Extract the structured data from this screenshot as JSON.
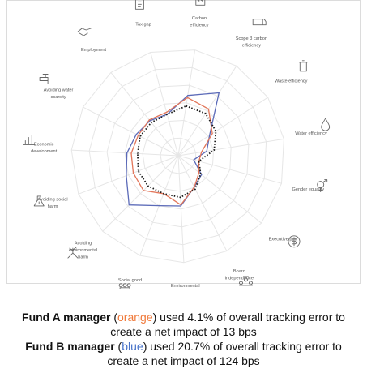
{
  "chart_data": {
    "type": "radar",
    "axes": [
      "Carbon efficiency",
      "Scope 3 carbon efficiency",
      "Waste efficiency",
      "Water efficiency",
      "Gender equality",
      "Executive pay",
      "Board independence",
      "Environmental good",
      "Social good",
      "Avoiding environmental harm",
      "Avoiding social harm",
      "Economic development",
      "Avoiding water scarcity",
      "Employment",
      "Tax gap"
    ],
    "axis_icons": [
      "factory-icon",
      "supply-chain-truck-icon",
      "trash-bin-icon",
      "water-drop-icon",
      "gender-symbol-icon",
      "dollar-coin-icon",
      "board-people-icon",
      "leaf-hand-icon",
      "people-group-icon",
      "hand-plant-icon",
      "warning-flask-icon",
      "bar-chart-icon",
      "water-tap-icon",
      "handshake-icon",
      "tax-document-icon"
    ],
    "rings": 6,
    "max": 1.0,
    "series": [
      {
        "color": "#5b6ab8",
        "values": [
          0.57,
          0.7,
          0.35,
          0.27,
          0.15,
          0.28,
          0.33,
          0.47,
          0.5,
          0.65,
          0.52,
          0.48,
          0.44,
          0.42,
          0.4
        ]
      },
      {
        "color": "#e2765a",
        "values": [
          0.55,
          0.52,
          0.38,
          0.22,
          0.2,
          0.25,
          0.33,
          0.46,
          0.38,
          0.46,
          0.45,
          0.44,
          0.42,
          0.43,
          0.42
        ]
      },
      {
        "color": "#1a1a1a",
        "dashed": true,
        "values": [
          0.47,
          0.47,
          0.42,
          0.34,
          0.2,
          0.27,
          0.35,
          0.39,
          0.38,
          0.4,
          0.4,
          0.38,
          0.4,
          0.4,
          0.4
        ]
      }
    ]
  },
  "caption": {
    "line1_bold": "Fund A manager",
    "line1_open": " (",
    "line1_color": "orange",
    "line1_rest": ") used 4.1% of overall tracking error to",
    "line2": "create a net impact of 13 bps",
    "line3_bold": "Fund B manager",
    "line3_open": " (",
    "line3_color": "blue",
    "line3_rest": ") used 20.7% of overall tracking error to",
    "line4": "create a net impact of 124 bps"
  }
}
